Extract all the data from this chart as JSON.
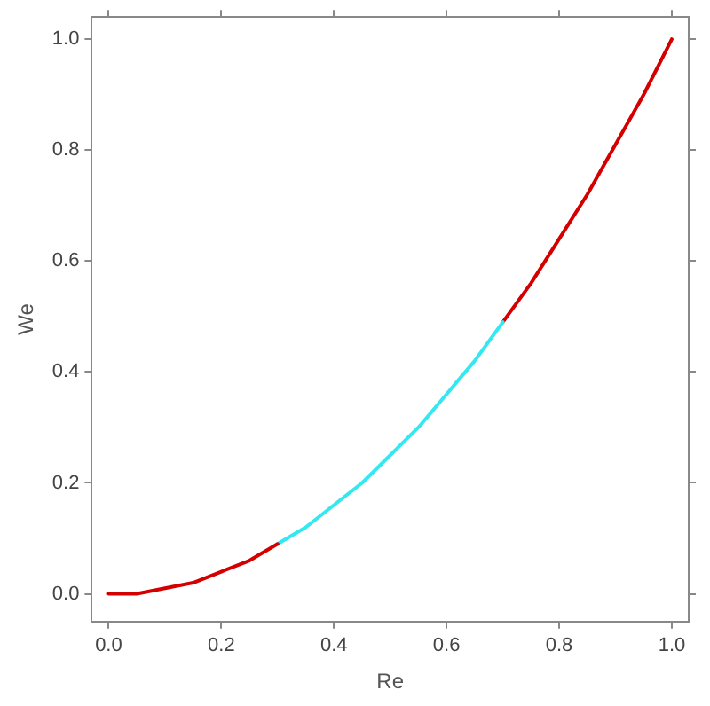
{
  "chart_data": {
    "type": "line",
    "xlabel": "Re",
    "ylabel": "We",
    "xlim": [
      -0.03,
      1.03
    ],
    "ylim": [
      -0.05,
      1.04
    ],
    "xticks": [
      {
        "value": 0,
        "label": "0.0"
      },
      {
        "value": 0.2,
        "label": "0.2"
      },
      {
        "value": 0.4,
        "label": "0.4"
      },
      {
        "value": 0.6,
        "label": "0.6"
      },
      {
        "value": 0.8,
        "label": "0.8"
      },
      {
        "value": 1,
        "label": "1.0"
      }
    ],
    "yticks": [
      {
        "value": 0,
        "label": "0.0"
      },
      {
        "value": 0.2,
        "label": "0.2"
      },
      {
        "value": 0.4,
        "label": "0.4"
      },
      {
        "value": 0.6,
        "label": "0.6"
      },
      {
        "value": 0.8,
        "label": "0.8"
      },
      {
        "value": 1,
        "label": "1.0"
      }
    ],
    "grid": false,
    "legend": false,
    "marker": "none",
    "line_style": "solid",
    "series": [
      {
        "color": "#d40000",
        "x": [
          0,
          0.05,
          0.1,
          0.15,
          0.2,
          0.25,
          0.3
        ],
        "values": [
          0,
          0,
          0.01,
          0.02,
          0.04,
          0.06,
          0.09
        ]
      },
      {
        "color": "#33e8f0",
        "x": [
          0.3,
          0.35,
          0.4,
          0.45,
          0.5,
          0.55,
          0.6,
          0.65,
          0.7
        ],
        "values": [
          0.09,
          0.12,
          0.16,
          0.2,
          0.25,
          0.3,
          0.36,
          0.42,
          0.49
        ]
      },
      {
        "color": "#d40000",
        "x": [
          0.7,
          0.75,
          0.8,
          0.85,
          0.9,
          0.95,
          1
        ],
        "values": [
          0.49,
          0.56,
          0.64,
          0.72,
          0.81,
          0.9,
          1
        ]
      }
    ]
  }
}
